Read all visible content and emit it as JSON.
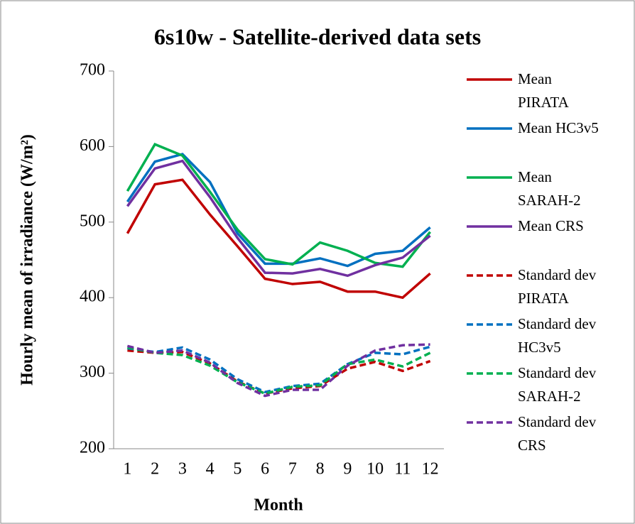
{
  "chart_data": {
    "type": "line",
    "title": "6s10w - Satellite-derived data sets",
    "x_label": "Month",
    "y_label": "Hourly mean of irradiance (W/m²)",
    "categories": [
      "1",
      "2",
      "3",
      "4",
      "5",
      "6",
      "7",
      "8",
      "9",
      "10",
      "11",
      "12"
    ],
    "ylim": [
      200,
      700
    ],
    "yticks": [
      200,
      300,
      400,
      500,
      600,
      700
    ],
    "grid": false,
    "legend": "right",
    "series": [
      {
        "name": "Mean PIRATA",
        "color": "#c00000",
        "dash": false,
        "values": [
          485,
          550,
          556,
          510,
          468,
          425,
          418,
          421,
          408,
          408,
          400,
          432
        ]
      },
      {
        "name": "Mean HC3v5",
        "color": "#0070c0",
        "dash": false,
        "values": [
          527,
          580,
          590,
          553,
          485,
          445,
          445,
          452,
          442,
          458,
          462,
          493
        ]
      },
      {
        "name": "Mean SARAH-2",
        "color": "#00b050",
        "dash": false,
        "values": [
          541,
          603,
          588,
          540,
          490,
          451,
          444,
          473,
          462,
          446,
          441,
          487
        ]
      },
      {
        "name": "Mean CRS",
        "color": "#7030a0",
        "dash": false,
        "values": [
          521,
          571,
          581,
          533,
          479,
          433,
          432,
          438,
          429,
          443,
          453,
          482
        ]
      },
      {
        "name": "Standard dev PIRATA",
        "color": "#c00000",
        "dash": true,
        "values": [
          330,
          327,
          328,
          313,
          289,
          273,
          280,
          283,
          306,
          315,
          303,
          316
        ]
      },
      {
        "name": "Standard dev HC3v5",
        "color": "#0070c0",
        "dash": true,
        "values": [
          333,
          328,
          334,
          318,
          292,
          275,
          283,
          286,
          312,
          327,
          325,
          335
        ]
      },
      {
        "name": "Standard dev SARAH-2",
        "color": "#00b050",
        "dash": true,
        "values": [
          334,
          327,
          324,
          310,
          288,
          273,
          282,
          284,
          312,
          318,
          309,
          327
        ]
      },
      {
        "name": "Standard dev CRS",
        "color": "#7030a0",
        "dash": true,
        "values": [
          336,
          327,
          330,
          314,
          287,
          270,
          278,
          278,
          310,
          330,
          337,
          338
        ]
      }
    ]
  }
}
